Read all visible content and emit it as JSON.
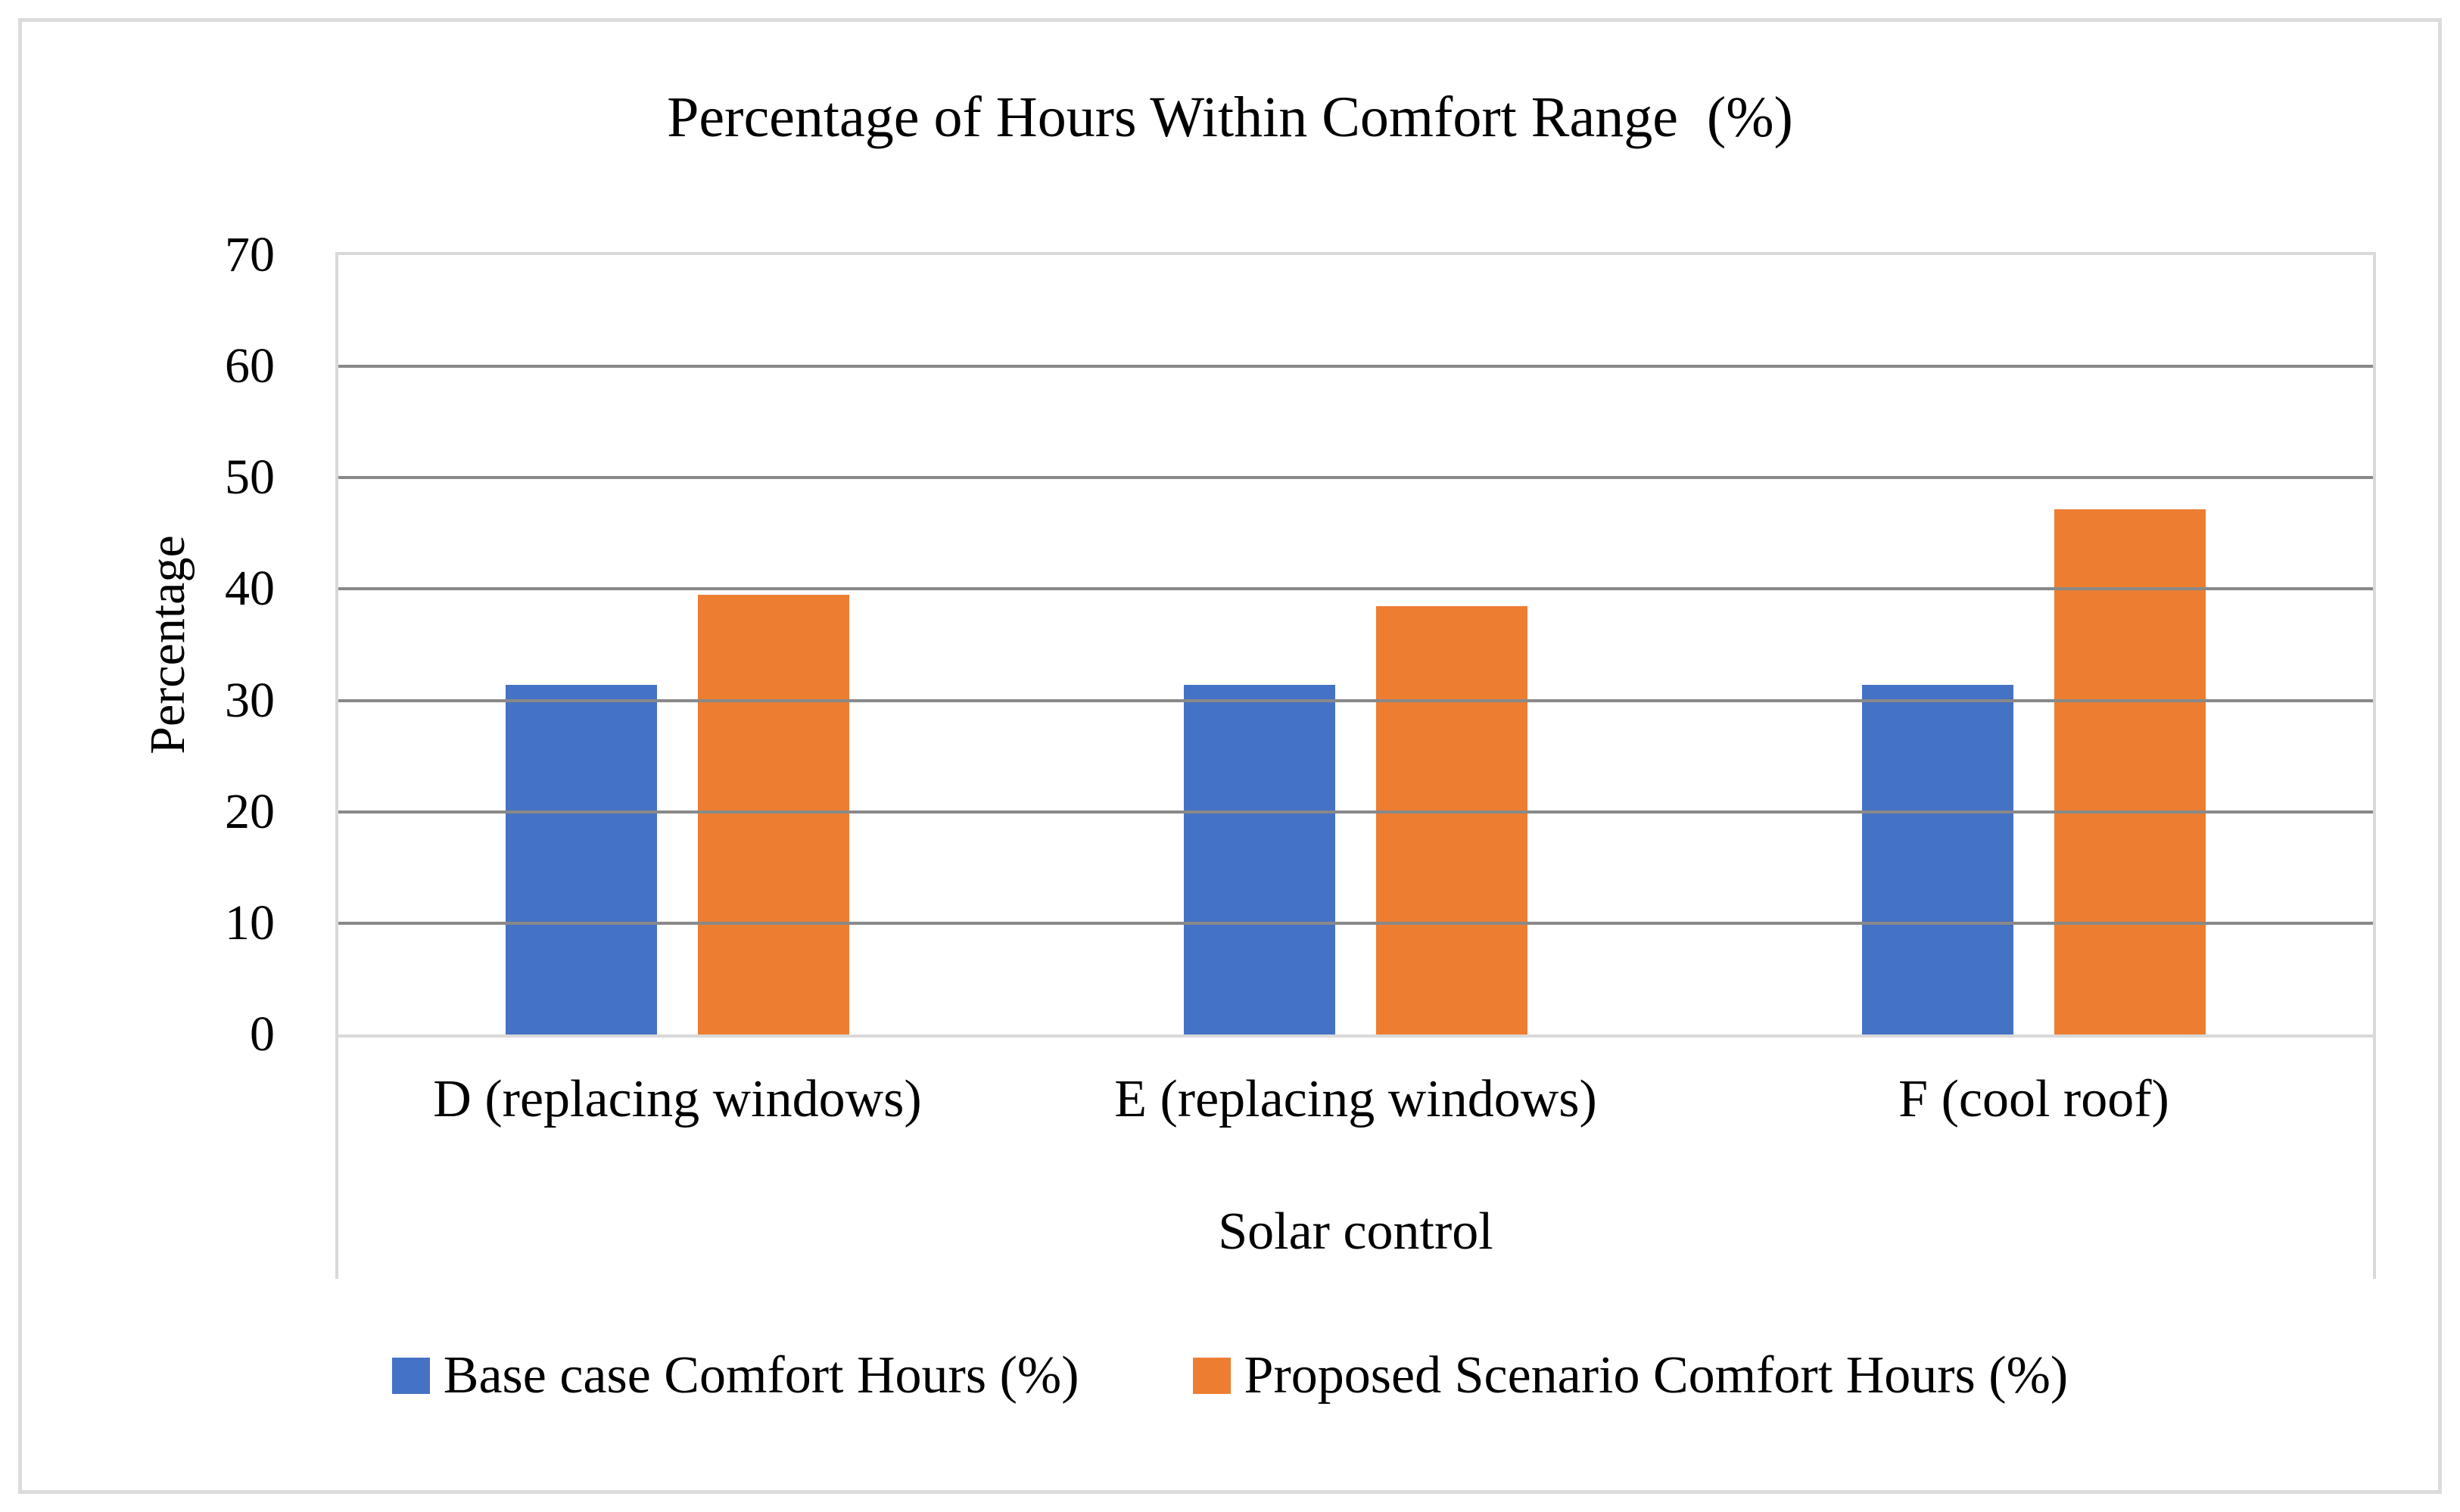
{
  "figure": {
    "background": "#ffffff",
    "border_color": "#dcdcdc"
  },
  "chart_data": {
    "type": "bar",
    "title": "Percentage of Hours Within Comfort Range  (%)",
    "xlabel": "Solar control",
    "ylabel": "Percentage",
    "categories": [
      "D (replacing windows)",
      "E (replacing windows)",
      "F (cool roof)"
    ],
    "series": [
      {
        "name": "Base case Comfort Hours (%)",
        "color": "#4472C4",
        "values": [
          31.4,
          31.4,
          31.4
        ]
      },
      {
        "name": "Proposed Scenario Comfort Hours (%)",
        "color": "#ED7D31",
        "values": [
          39.5,
          38.5,
          47.2
        ]
      }
    ],
    "ylim": [
      0,
      70
    ],
    "ytick_step": 10,
    "yticks": [
      0,
      10,
      20,
      30,
      40,
      50,
      60,
      70
    ],
    "grid": true,
    "gridline_color": "#898989",
    "plot_border_color": "#d9d9d9",
    "legend_position": "bottom"
  }
}
